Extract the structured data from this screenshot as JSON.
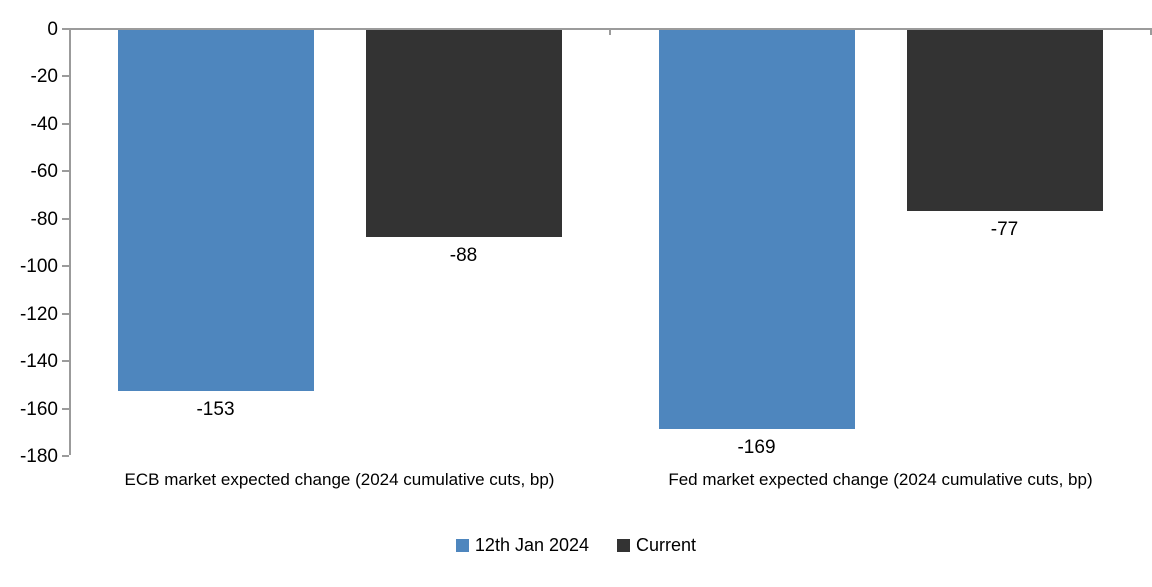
{
  "chart_data": {
    "type": "bar",
    "categories": [
      "ECB market expected change (2024 cumulative cuts, bp)",
      "Fed market expected change (2024 cumulative cuts, bp)"
    ],
    "series": [
      {
        "name": "12th Jan 2024",
        "color": "#4E86BE",
        "values": [
          -153,
          -169
        ]
      },
      {
        "name": "Current",
        "color": "#333333",
        "values": [
          -88,
          -77
        ]
      }
    ],
    "data_labels": [
      [
        "-153",
        "-169"
      ],
      [
        "-88",
        "-77"
      ]
    ],
    "title": "",
    "xlabel": "",
    "ylabel": "",
    "ylim": [
      -180,
      0
    ],
    "yticks": [
      0,
      -20,
      -40,
      -60,
      -80,
      -100,
      -120,
      -140,
      -160,
      -180
    ],
    "grid": false,
    "legend_position": "bottom",
    "colors": {
      "axis": "#9B9B9B",
      "text": "#000000",
      "background": "#FFFFFF"
    }
  }
}
